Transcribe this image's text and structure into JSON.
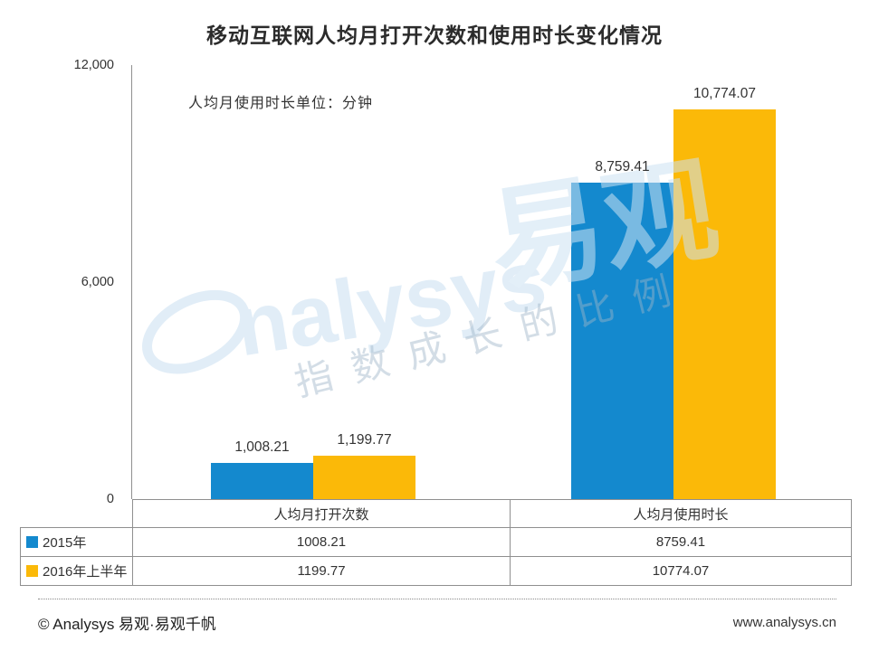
{
  "title": "移动互联网人均月打开次数和使用时长变化情况",
  "subtitle": "人均月使用时长单位：分钟",
  "chart_data": {
    "type": "bar",
    "title": "移动互联网人均月打开次数和使用时长变化情况",
    "unit_note": "人均月使用时长单位：分钟",
    "categories": [
      "人均月打开次数",
      "人均月使用时长"
    ],
    "series": [
      {
        "name": "2015年",
        "color": "#1489CE",
        "values": [
          1008.21,
          8759.41
        ],
        "value_labels": [
          "1,008.21",
          "8,759.41"
        ]
      },
      {
        "name": "2016年上半年",
        "color": "#FBB908",
        "values": [
          1199.77,
          10774.07
        ],
        "value_labels": [
          "1,199.77",
          "10,774.07"
        ]
      }
    ],
    "ylim": [
      0,
      12000
    ],
    "yticks": [
      {
        "value": 0,
        "label": "0"
      },
      {
        "value": 6000,
        "label": "6,000"
      },
      {
        "value": 12000,
        "label": "12,000"
      }
    ],
    "grid": false,
    "legend_position": "bottom-table"
  },
  "table": {
    "column_headers": [
      "人均月打开次数",
      "人均月使用时长"
    ],
    "rows": [
      {
        "legend": "2015年",
        "swatch": "#1489CE",
        "values": [
          "1008.21",
          "8759.41"
        ]
      },
      {
        "legend": "2016年上半年",
        "swatch": "#FBB908",
        "values": [
          "1199.77",
          "10774.07"
        ]
      }
    ]
  },
  "watermark": {
    "logo_latin": "nalysys",
    "logo_cjk": "易观",
    "slogan": "指数成长的比例"
  },
  "footer": {
    "left": "© Analysys 易观·易观千帆",
    "right": "www.analysys.cn"
  },
  "colors": {
    "blue": "#1489CE",
    "yellow": "#FBB908",
    "axis": "#8F8F8F"
  }
}
